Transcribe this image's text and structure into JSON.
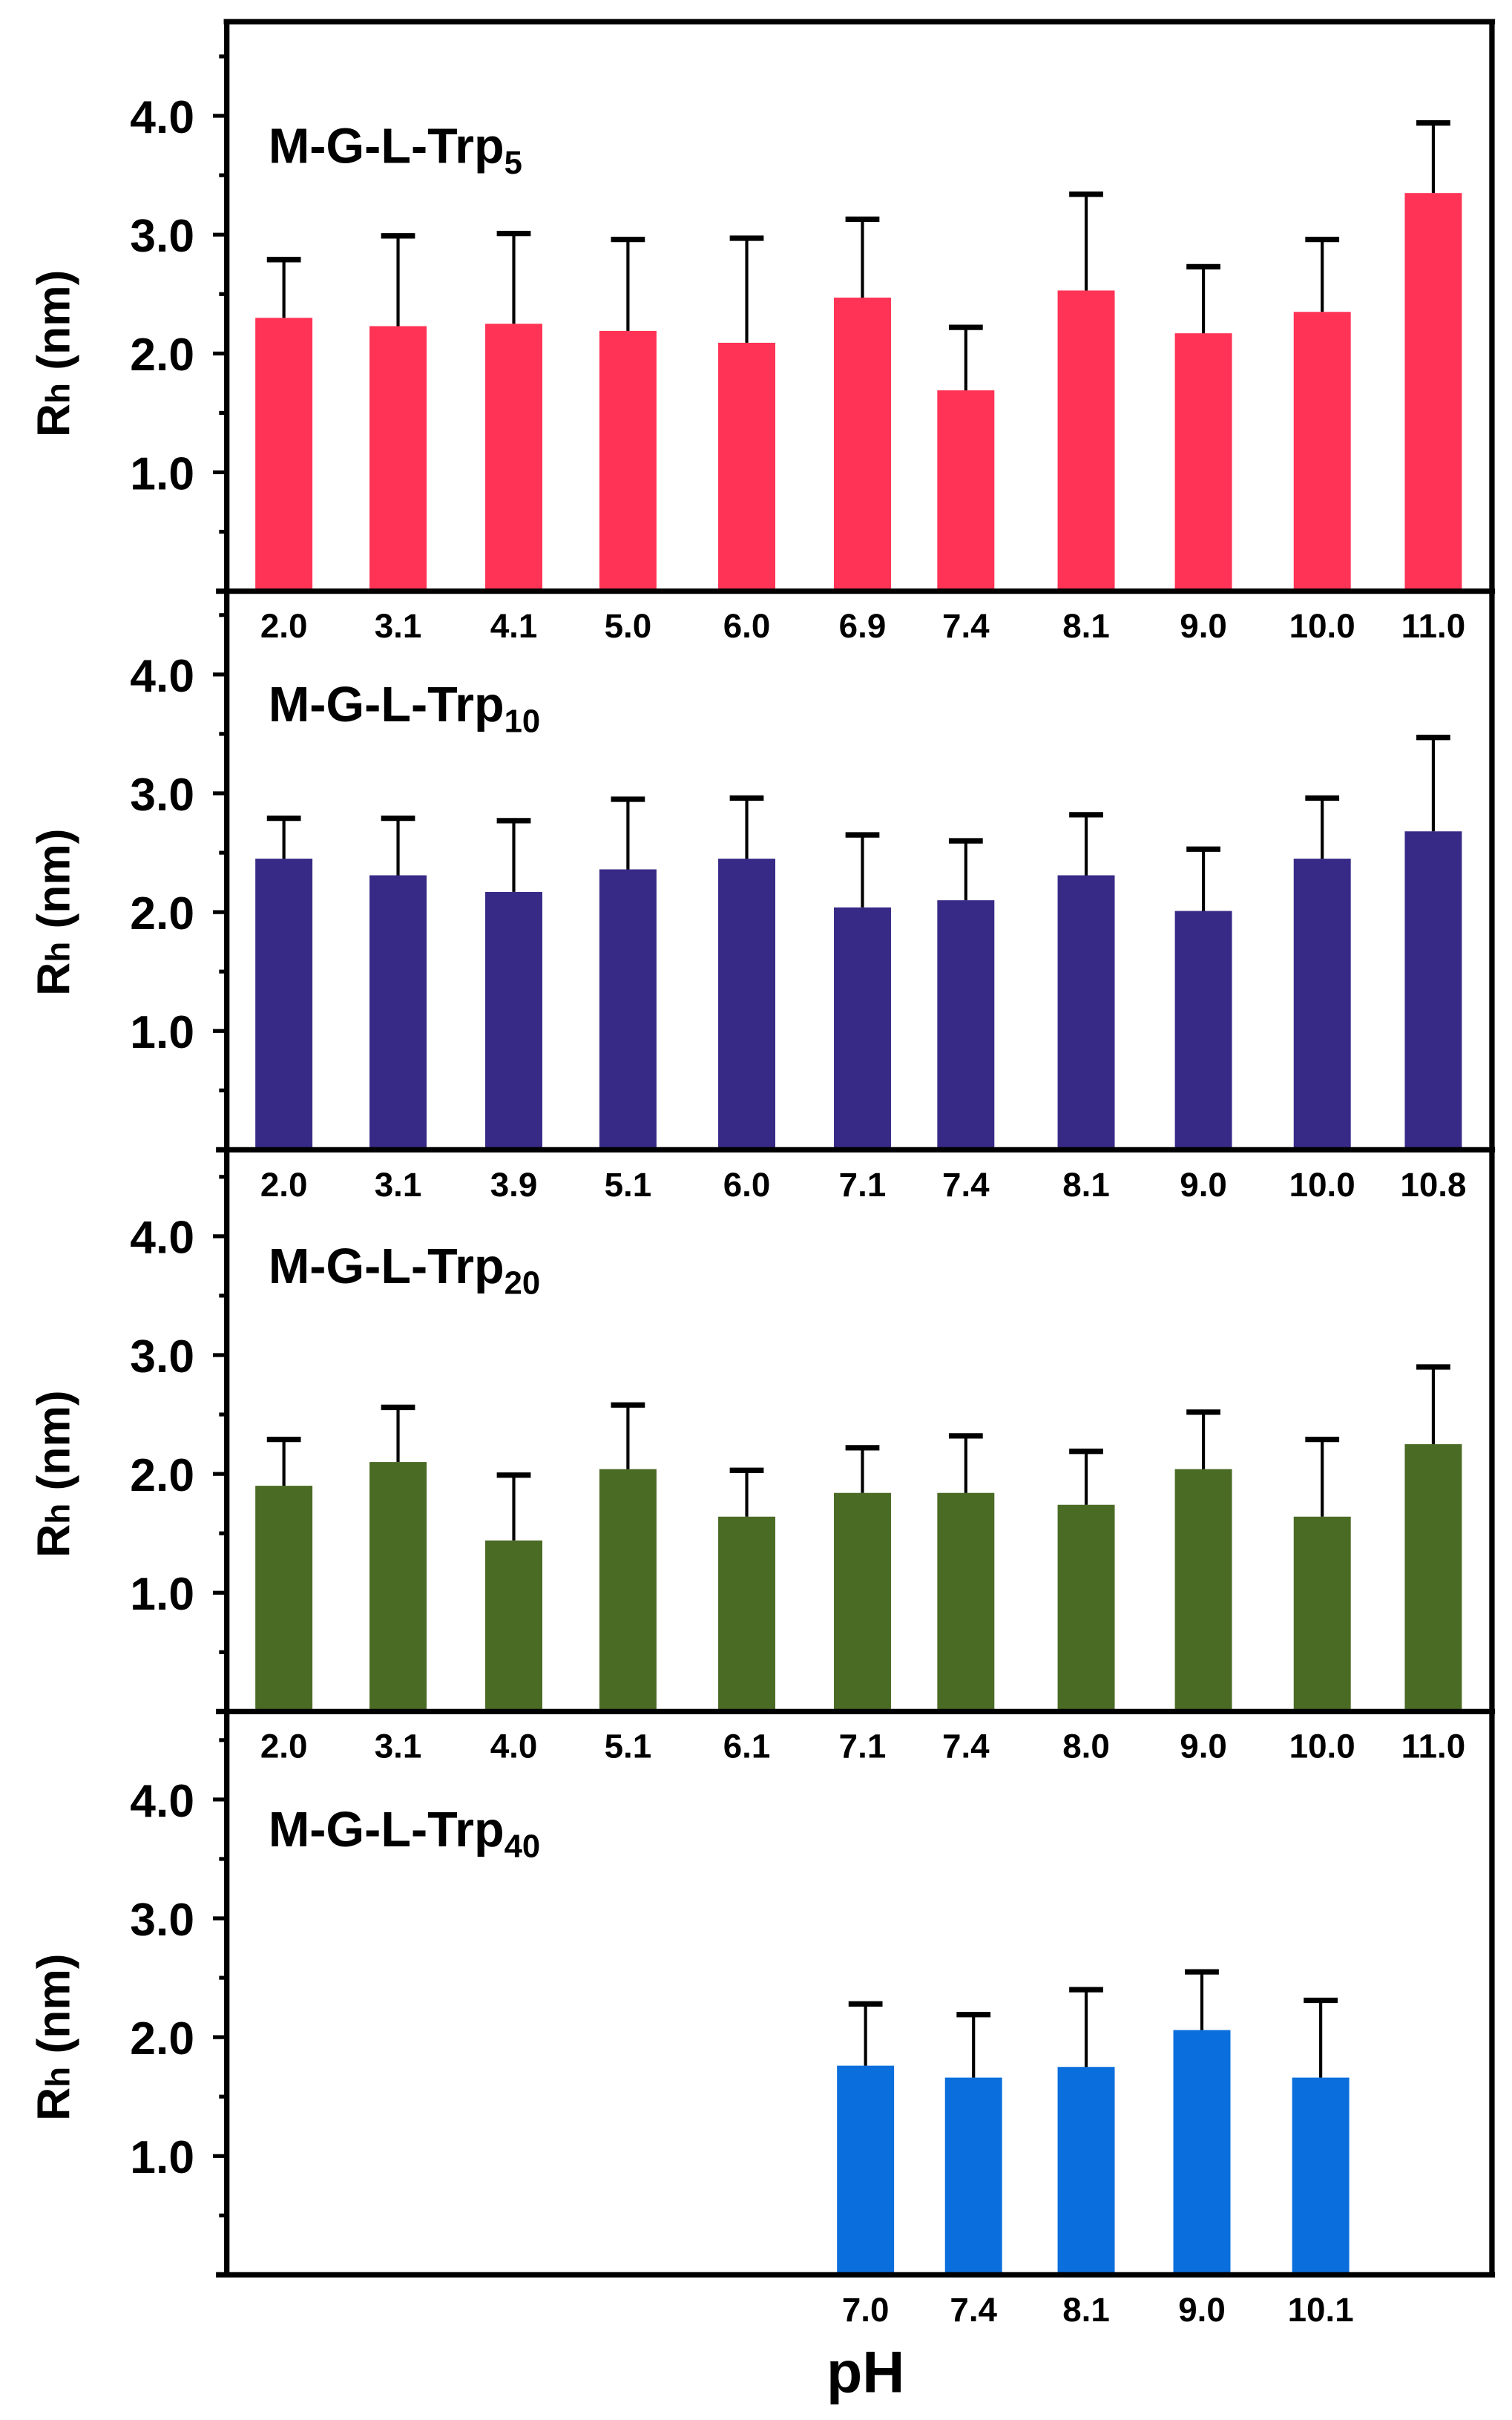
{
  "chart_data": [
    {
      "type": "bar",
      "title": "M-G-L-Trp",
      "title_subscript": "5",
      "color": "#FF3355",
      "categories": [
        "2.0",
        "3.1",
        "4.1",
        "5.0",
        "6.0",
        "6.9",
        "7.4",
        "8.1",
        "9.0",
        "10.0",
        "11.0"
      ],
      "values": [
        2.3,
        2.23,
        2.25,
        2.19,
        2.09,
        2.47,
        1.69,
        2.53,
        2.17,
        2.35,
        3.35
      ],
      "error_upper": [
        2.79,
        2.99,
        3.01,
        2.96,
        2.97,
        3.13,
        2.22,
        3.34,
        2.73,
        2.96,
        3.94
      ],
      "ylabel_main": "R",
      "ylabel_sub": "h",
      "ylabel_unit": " (nm)",
      "yticks": [
        "1.0",
        "2.0",
        "3.0",
        "4.0"
      ],
      "ylim": [
        0,
        4.7
      ]
    },
    {
      "type": "bar",
      "title": "M-G-L-Trp",
      "title_subscript": "10",
      "color": "#372A87",
      "categories": [
        "2.0",
        "3.1",
        "3.9",
        "5.1",
        "6.0",
        "7.1",
        "7.4",
        "8.1",
        "9.0",
        "10.0",
        "10.8"
      ],
      "values": [
        2.45,
        2.31,
        2.17,
        2.36,
        2.45,
        2.04,
        2.1,
        2.31,
        2.01,
        2.45,
        2.68
      ],
      "error_upper": [
        2.79,
        2.79,
        2.77,
        2.95,
        2.96,
        2.65,
        2.6,
        2.82,
        2.53,
        2.96,
        3.47
      ],
      "ylabel_main": "R",
      "ylabel_sub": "h",
      "ylabel_unit": " (nm)",
      "yticks": [
        "1.0",
        "2.0",
        "3.0",
        "4.0"
      ],
      "ylim": [
        0,
        4.7
      ]
    },
    {
      "type": "bar",
      "title": "M-G-L-Trp",
      "title_subscript": "20",
      "color": "#4A6B24",
      "categories": [
        "2.0",
        "3.1",
        "4.0",
        "5.1",
        "6.1",
        "7.1",
        "7.4",
        "8.0",
        "9.0",
        "10.0",
        "11.0"
      ],
      "values": [
        1.9,
        2.1,
        1.44,
        2.04,
        1.64,
        1.84,
        1.84,
        1.74,
        2.04,
        1.64,
        2.25
      ],
      "error_upper": [
        2.29,
        2.56,
        1.99,
        2.58,
        2.03,
        2.22,
        2.32,
        2.19,
        2.52,
        2.29,
        2.9
      ],
      "ylabel_main": "R",
      "ylabel_sub": "h",
      "ylabel_unit": " (nm)",
      "yticks": [
        "1.0",
        "2.0",
        "3.0",
        "4.0"
      ],
      "ylim": [
        0,
        4.7
      ]
    },
    {
      "type": "bar",
      "title": "M-G-L-Trp",
      "title_subscript": "40",
      "color": "#0A6EDC",
      "categories": [
        "7.0",
        "7.4",
        "8.1",
        "9.0",
        "10.1"
      ],
      "values": [
        1.76,
        1.66,
        1.75,
        2.06,
        1.66
      ],
      "error_upper": [
        2.28,
        2.19,
        2.4,
        2.55,
        2.31
      ],
      "ylabel_main": "R",
      "ylabel_sub": "h",
      "ylabel_unit": " (nm)",
      "yticks": [
        "1.0",
        "2.0",
        "3.0",
        "4.0"
      ],
      "ylim": [
        0,
        4.7
      ],
      "xlabel": "pH"
    }
  ]
}
